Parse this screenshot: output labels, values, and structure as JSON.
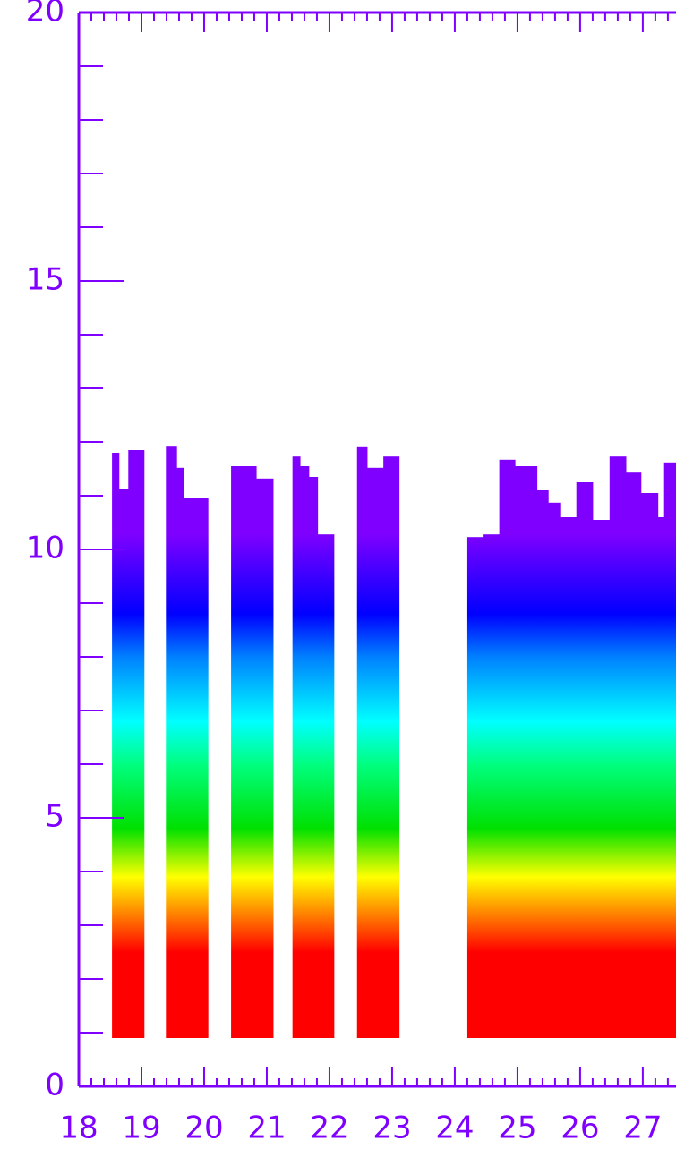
{
  "chart_data": {
    "type": "column-profile",
    "x_start": [
      18.53,
      18.64,
      18.79,
      19.39,
      19.56,
      19.67,
      20.43,
      20.83,
      21.41,
      21.53,
      21.67,
      21.81,
      22.44,
      22.6,
      22.86,
      24.2,
      24.46,
      24.71,
      24.96,
      25.31,
      25.49,
      25.69,
      25.94,
      26.2,
      26.47,
      26.73,
      26.97,
      27.24,
      27.34
    ],
    "x_end": [
      18.64,
      18.79,
      19.04,
      19.56,
      19.67,
      20.06,
      20.83,
      21.1,
      21.53,
      21.67,
      21.81,
      22.07,
      22.6,
      22.86,
      23.11,
      24.46,
      24.71,
      24.96,
      25.31,
      25.49,
      25.69,
      25.94,
      26.2,
      26.47,
      26.73,
      26.97,
      27.24,
      27.34,
      27.53
    ],
    "values": [
      11.8,
      11.13,
      11.85,
      11.93,
      11.52,
      10.95,
      11.55,
      11.32,
      11.73,
      11.55,
      11.35,
      10.28,
      11.92,
      11.52,
      11.73,
      10.23,
      10.28,
      11.67,
      11.55,
      11.1,
      10.87,
      10.6,
      11.25,
      10.55,
      11.73,
      11.43,
      11.05,
      10.6,
      11.62
    ],
    "base": 0.9,
    "colorscale": [
      {
        "value": 0,
        "color": "#ff0000"
      },
      {
        "value": 2.5,
        "color": "#ff0000"
      },
      {
        "value": 3.2,
        "color": "#ff8000"
      },
      {
        "value": 3.9,
        "color": "#ffff00"
      },
      {
        "value": 4.8,
        "color": "#00e000"
      },
      {
        "value": 6,
        "color": "#00ff80"
      },
      {
        "value": 6.8,
        "color": "#00ffff"
      },
      {
        "value": 8,
        "color": "#0080ff"
      },
      {
        "value": 8.8,
        "color": "#0000ff"
      },
      {
        "value": 10.3,
        "color": "#8000ff"
      },
      {
        "value": 20,
        "color": "#8000ff"
      }
    ],
    "axis_color": "#7f00ff",
    "xlim": [
      18,
      27.53
    ],
    "xticks": [
      18,
      19,
      20,
      21,
      22,
      23,
      24,
      25,
      26,
      27
    ],
    "xminorticks": [
      18.2,
      18.4,
      18.6,
      18.8,
      19.2,
      19.4,
      19.6,
      19.8,
      20.2,
      20.4,
      20.6,
      20.8,
      21.2,
      21.4,
      21.6,
      21.8,
      22.2,
      22.4,
      22.6,
      22.8,
      23.2,
      23.4,
      23.6,
      23.8,
      24.2,
      24.4,
      24.6,
      24.8,
      25.2,
      25.4,
      25.6,
      25.8,
      26.2,
      26.4,
      26.6,
      26.8,
      27.2,
      27.4
    ],
    "ylim": [
      0,
      20
    ],
    "yticks": [
      0,
      5,
      10,
      15,
      20
    ],
    "yminorticks": [
      1,
      2,
      3,
      4,
      6,
      7,
      8,
      9,
      11,
      12,
      13,
      14,
      16,
      17,
      18,
      19
    ]
  }
}
